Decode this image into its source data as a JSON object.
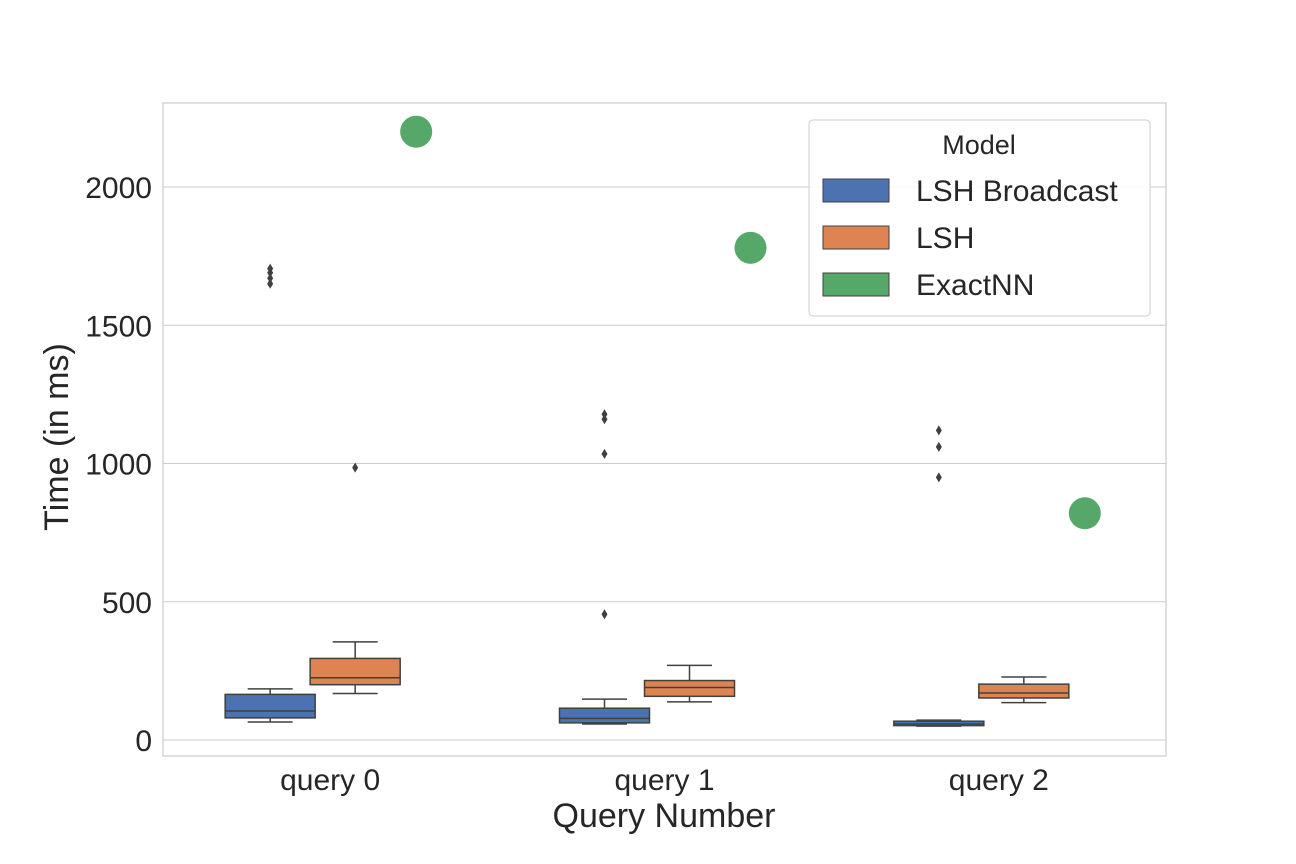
{
  "chart_data": {
    "type": "box",
    "xlabel": "Query Number",
    "ylabel": "Time (in ms)",
    "categories": [
      "query 0",
      "query 1",
      "query 2"
    ],
    "ylim": [
      -60,
      2300
    ],
    "yticks": [
      0,
      500,
      1000,
      1500,
      2000
    ],
    "grid": true,
    "legend": {
      "title": "Model",
      "position": "top-right",
      "entries": [
        {
          "label": "LSH Broadcast",
          "color": "#4c72b0"
        },
        {
          "label": "LSH",
          "color": "#dd8452"
        },
        {
          "label": "ExactNN",
          "color": "#55a868"
        }
      ]
    },
    "series": [
      {
        "name": "LSH Broadcast",
        "color": "#4c72b0",
        "boxes": [
          {
            "category": "query 0",
            "whisker_low": 65,
            "q1": 80,
            "median": 105,
            "q3": 165,
            "whisker_high": 185,
            "outliers": [
              1650,
              1670,
              1690,
              1705
            ]
          },
          {
            "category": "query 1",
            "whisker_low": 58,
            "q1": 62,
            "median": 78,
            "q3": 115,
            "whisker_high": 148,
            "outliers": [
              455,
              1035,
              1160,
              1178
            ]
          },
          {
            "category": "query 2",
            "whisker_low": 50,
            "q1": 52,
            "median": 58,
            "q3": 68,
            "whisker_high": 72,
            "outliers": [
              950,
              1060,
              1120
            ]
          }
        ]
      },
      {
        "name": "LSH",
        "color": "#dd8452",
        "boxes": [
          {
            "category": "query 0",
            "whisker_low": 168,
            "q1": 200,
            "median": 225,
            "q3": 295,
            "whisker_high": 355,
            "outliers": [
              985
            ]
          },
          {
            "category": "query 1",
            "whisker_low": 138,
            "q1": 158,
            "median": 190,
            "q3": 215,
            "whisker_high": 270,
            "outliers": []
          },
          {
            "category": "query 2",
            "whisker_low": 135,
            "q1": 152,
            "median": 170,
            "q3": 202,
            "whisker_high": 228,
            "outliers": []
          }
        ]
      },
      {
        "name": "ExactNN",
        "color": "#55a868",
        "points": [
          {
            "category": "query 0",
            "value": 2200
          },
          {
            "category": "query 1",
            "value": 1780
          },
          {
            "category": "query 2",
            "value": 820
          }
        ]
      }
    ]
  }
}
